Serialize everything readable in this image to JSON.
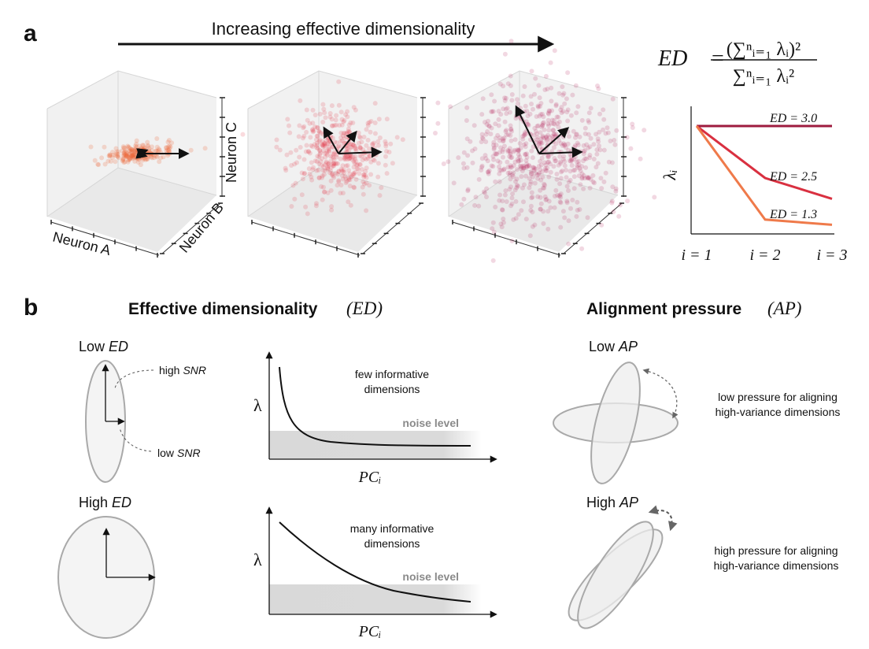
{
  "panel_a": {
    "label": "a",
    "arrow_caption": "Increasing effective dimensionality",
    "formula": {
      "lhs": "ED",
      "equals": "=",
      "numerator": "(∑ⁿᵢ₌₁ λᵢ)²",
      "denominator": "∑ⁿᵢ₌₁ λᵢ²"
    },
    "axes": {
      "neuron_a": "Neuron A",
      "neuron_b": "Neuron B",
      "neuron_c": "Neuron C"
    },
    "clouds": [
      {
        "name": "low-ed-cloud",
        "color": "#ef6a3a"
      },
      {
        "name": "mid-ed-cloud",
        "color": "#e2364a"
      },
      {
        "name": "high-ed-cloud",
        "color": "#b8285e"
      }
    ],
    "eigen_chart": {
      "ylabel": "λᵢ",
      "xticks": [
        "i = 1",
        "i = 2",
        "i = 3"
      ],
      "series": [
        {
          "label": "ED = 3.0",
          "color": "#9e1b3f",
          "values": [
            1.0,
            1.0,
            1.0
          ]
        },
        {
          "label": "ED = 2.5",
          "color": "#d93040",
          "values": [
            1.0,
            0.5,
            0.3
          ]
        },
        {
          "label": "ED = 1.3",
          "color": "#ef7a4a",
          "values": [
            1.0,
            0.1,
            0.05
          ]
        }
      ]
    }
  },
  "panel_b": {
    "label": "b",
    "ed_title": "Effective dimensionality",
    "ed_symbol": "(ED)",
    "ap_title": "Alignment pressure",
    "ap_symbol": "(AP)",
    "low_ed": {
      "label": "Low",
      "symbol": "ED",
      "high_snr": "high",
      "low_snr": "low",
      "snr": "SNR"
    },
    "high_ed": {
      "label": "High",
      "symbol": "ED"
    },
    "spectra": [
      {
        "caption_line1": "few informative",
        "caption_line2": "dimensions",
        "noise": "noise level",
        "ylabel": "λ",
        "xlabel": "PCᵢ"
      },
      {
        "caption_line1": "many informative",
        "caption_line2": "dimensions",
        "noise": "noise level",
        "ylabel": "λ",
        "xlabel": "PCᵢ"
      }
    ],
    "low_ap": {
      "label": "Low",
      "symbol": "AP",
      "desc_line1": "low pressure for aligning",
      "desc_line2": "high-variance dimensions"
    },
    "high_ap": {
      "label": "High",
      "symbol": "AP",
      "desc_line1": "high pressure for aligning",
      "desc_line2": "high-variance dimensions"
    }
  }
}
